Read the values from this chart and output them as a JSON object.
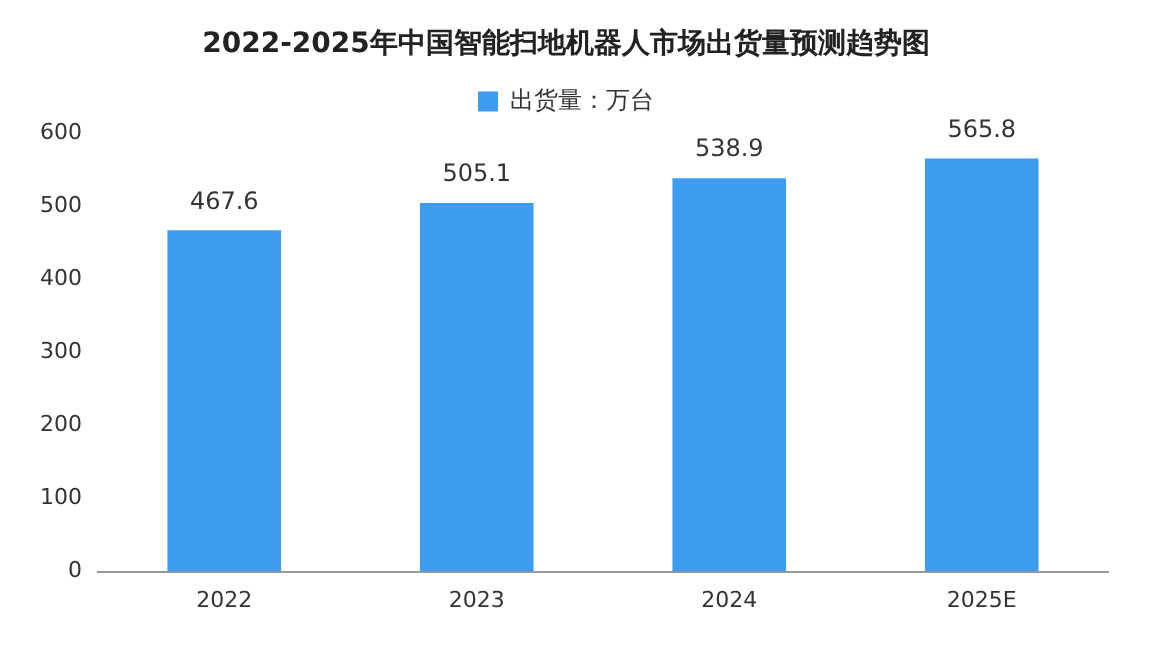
{
  "chart_data": {
    "type": "bar",
    "title": "2022-2025年中国智能扫地机器人市场出货量预测趋势图",
    "categories": [
      "2022",
      "2023",
      "2024",
      "2025E"
    ],
    "series": [
      {
        "name": "出货量：万台",
        "color": "#3d9cf0",
        "values": [
          467.6,
          505.1,
          538.9,
          565.8
        ]
      }
    ],
    "ylim": [
      0,
      600
    ],
    "yticks": [
      0,
      100,
      200,
      300,
      400,
      500,
      600
    ],
    "grid": false,
    "legend": "top",
    "data_labels": true
  }
}
